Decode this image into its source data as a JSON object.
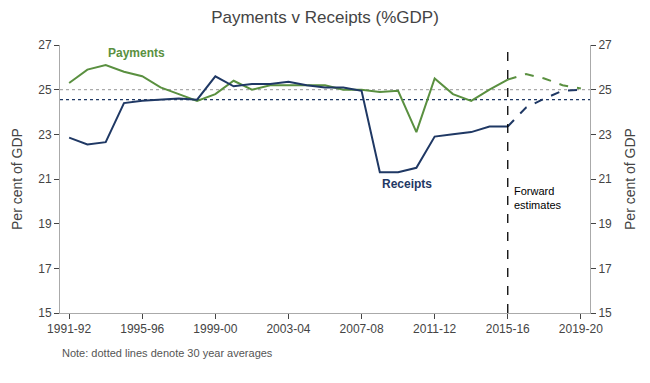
{
  "chart_data": {
    "type": "line",
    "title": "Payments v Receipts (%GDP)",
    "ylabel": "Per cent of GDP",
    "y2label": "Per cent of GDP",
    "note": "Note: dotted lines denote 30 year averages",
    "annotations": [
      "Forward\nestimates"
    ],
    "categories": [
      "1991-92",
      null,
      null,
      null,
      "1995-96",
      null,
      null,
      null,
      "1999-00",
      null,
      null,
      null,
      "2003-04",
      null,
      null,
      null,
      "2007-08",
      null,
      null,
      null,
      "2011-12",
      null,
      null,
      null,
      "2015-16",
      null,
      null,
      null,
      "2019-20"
    ],
    "series": [
      {
        "name": "Payments",
        "color": "#5a9040",
        "line_style": "solid",
        "values": [
          25.3,
          25.9,
          26.1,
          25.8,
          25.6,
          25.1,
          24.8,
          24.5,
          24.8,
          25.4,
          25.0,
          25.2,
          25.2,
          25.2,
          25.2,
          25.0,
          25.0,
          24.9,
          24.95,
          23.1,
          25.5,
          24.8,
          24.5,
          25.0,
          25.45,
          null,
          null,
          null,
          null
        ]
      },
      {
        "name": "Receipts",
        "color": "#1f3864",
        "line_style": "solid",
        "values": [
          22.85,
          22.55,
          22.65,
          24.4,
          24.5,
          24.55,
          24.6,
          24.55,
          25.6,
          25.15,
          25.25,
          25.25,
          25.35,
          25.2,
          25.1,
          25.1,
          24.95,
          21.3,
          21.3,
          21.5,
          22.9,
          23.0,
          23.1,
          23.35,
          23.35,
          null,
          null,
          null,
          null
        ]
      },
      {
        "name": "Payments",
        "color": "#5a9040",
        "line_style": "dashed",
        "values": [
          null,
          null,
          null,
          null,
          null,
          null,
          null,
          null,
          null,
          null,
          null,
          null,
          null,
          null,
          null,
          null,
          null,
          null,
          null,
          null,
          null,
          null,
          null,
          null,
          25.45,
          25.7,
          25.5,
          25.2,
          25.05
        ]
      },
      {
        "name": "Receipts",
        "color": "#1f3864",
        "line_style": "dashed",
        "values": [
          null,
          null,
          null,
          null,
          null,
          null,
          null,
          null,
          null,
          null,
          null,
          null,
          null,
          null,
          null,
          null,
          null,
          null,
          null,
          null,
          null,
          null,
          null,
          null,
          23.35,
          24.2,
          24.6,
          24.95,
          25.0
        ]
      }
    ],
    "hlines": [
      {
        "value": 25.0,
        "color": "#aaaaaa",
        "line_style": "dotted"
      },
      {
        "value": 24.55,
        "color": "#1f3864",
        "line_style": "dotted"
      }
    ],
    "vline": {
      "category": "2015-16",
      "color": "black",
      "line_style": "dashed"
    },
    "ylim": [
      15,
      27
    ],
    "yticks": [
      15,
      17,
      19,
      21,
      23,
      25,
      27
    ],
    "y2lim": [
      15,
      27
    ],
    "y2ticks": [
      15,
      17,
      19,
      21,
      23,
      25,
      27
    ],
    "grid": false
  }
}
